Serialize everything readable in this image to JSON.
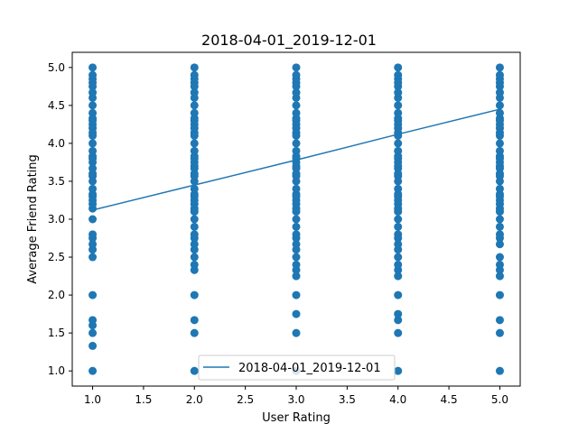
{
  "chart_data": {
    "type": "scatter",
    "title": "2018-04-01_2019-12-01",
    "xlabel": "User Rating",
    "ylabel": "Average Friend Rating",
    "xlim": [
      0.8,
      5.2
    ],
    "ylim": [
      0.8,
      5.2
    ],
    "x_ticks": [
      "1.0",
      "1.5",
      "2.0",
      "2.5",
      "3.0",
      "3.5",
      "4.0",
      "4.5",
      "5.0"
    ],
    "y_ticks": [
      "1.0",
      "1.5",
      "2.0",
      "2.5",
      "3.0",
      "3.5",
      "4.0",
      "4.5",
      "5.0"
    ],
    "color": "#1f77b4",
    "grid": false,
    "legend_position": "lower center",
    "series": [
      {
        "type": "scatter",
        "groups": [
          {
            "x": 1,
            "y": [
              1.0,
              1.33,
              1.5,
              1.6,
              1.67,
              2.0,
              2.5,
              2.6,
              2.67,
              2.75,
              2.8,
              3.0,
              3.14,
              3.2,
              3.25,
              3.3,
              3.33,
              3.4,
              3.5,
              3.57,
              3.6,
              3.67,
              3.75,
              3.8,
              3.83,
              3.9,
              4.0,
              4.1,
              4.14,
              4.2,
              4.25,
              4.3,
              4.33,
              4.4,
              4.5,
              4.6,
              4.67,
              4.75,
              4.8,
              4.85,
              4.9,
              5.0
            ]
          },
          {
            "x": 2,
            "y": [
              1.0,
              1.5,
              1.67,
              2.0,
              2.33,
              2.4,
              2.5,
              2.6,
              2.67,
              2.75,
              2.8,
              2.9,
              3.0,
              3.1,
              3.14,
              3.2,
              3.25,
              3.3,
              3.33,
              3.4,
              3.5,
              3.57,
              3.6,
              3.67,
              3.7,
              3.75,
              3.8,
              3.83,
              3.9,
              4.0,
              4.1,
              4.14,
              4.2,
              4.25,
              4.3,
              4.33,
              4.4,
              4.5,
              4.6,
              4.67,
              4.75,
              4.8,
              4.85,
              4.9,
              5.0
            ]
          },
          {
            "x": 3,
            "y": [
              1.0,
              1.5,
              1.75,
              2.0,
              2.25,
              2.33,
              2.4,
              2.5,
              2.6,
              2.67,
              2.75,
              2.8,
              2.9,
              3.0,
              3.1,
              3.14,
              3.2,
              3.25,
              3.3,
              3.33,
              3.4,
              3.5,
              3.57,
              3.6,
              3.67,
              3.7,
              3.75,
              3.8,
              3.83,
              3.9,
              4.0,
              4.1,
              4.14,
              4.2,
              4.25,
              4.3,
              4.33,
              4.4,
              4.5,
              4.6,
              4.67,
              4.75,
              4.8,
              4.85,
              4.9,
              5.0
            ]
          },
          {
            "x": 4,
            "y": [
              1.0,
              1.5,
              1.67,
              1.75,
              2.0,
              2.25,
              2.33,
              2.4,
              2.5,
              2.6,
              2.67,
              2.75,
              2.8,
              2.9,
              3.0,
              3.1,
              3.14,
              3.2,
              3.25,
              3.3,
              3.33,
              3.4,
              3.5,
              3.57,
              3.6,
              3.67,
              3.7,
              3.75,
              3.8,
              3.83,
              3.9,
              4.0,
              4.1,
              4.14,
              4.2,
              4.25,
              4.3,
              4.33,
              4.4,
              4.5,
              4.6,
              4.67,
              4.75,
              4.8,
              4.85,
              4.9,
              5.0
            ]
          },
          {
            "x": 5,
            "y": [
              1.0,
              1.5,
              1.67,
              2.0,
              2.25,
              2.33,
              2.4,
              2.5,
              2.67,
              2.75,
              2.8,
              2.9,
              3.0,
              3.1,
              3.14,
              3.2,
              3.25,
              3.3,
              3.33,
              3.4,
              3.5,
              3.57,
              3.6,
              3.67,
              3.7,
              3.75,
              3.8,
              3.83,
              3.9,
              4.0,
              4.1,
              4.14,
              4.2,
              4.25,
              4.3,
              4.33,
              4.4,
              4.5,
              4.6,
              4.67,
              4.75,
              4.8,
              4.85,
              4.9,
              5.0
            ]
          }
        ]
      },
      {
        "type": "line",
        "name": "2018-04-01_2019-12-01",
        "x": [
          1,
          2,
          3,
          4,
          5
        ],
        "y": [
          3.12,
          3.45,
          3.78,
          4.12,
          4.45
        ]
      }
    ]
  }
}
